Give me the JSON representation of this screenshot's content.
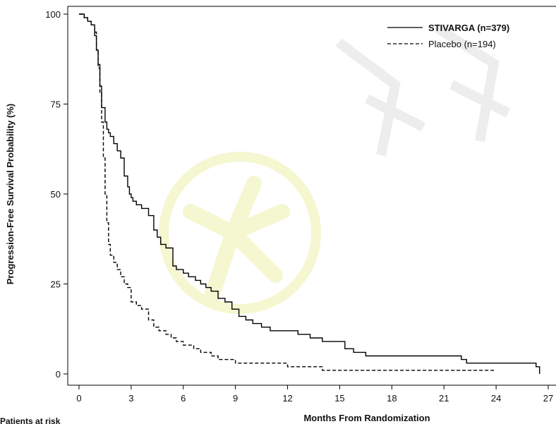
{
  "chart_data": {
    "type": "line",
    "subtype": "kaplan-meier",
    "title": "",
    "xlabel": "Months From Randomization",
    "ylabel": "Progression-Free Survival Probability (%)",
    "xlim": [
      0,
      27
    ],
    "ylim": [
      0,
      100
    ],
    "x_ticks": [
      0,
      3,
      6,
      9,
      12,
      15,
      18,
      21,
      24,
      27
    ],
    "y_ticks": [
      0,
      25,
      50,
      75,
      100
    ],
    "grid": false,
    "legend_position": "top-right",
    "series": [
      {
        "name": "STIVARGA (n=379)",
        "line_style": "solid",
        "color": "#000000",
        "x": [
          0,
          0.3,
          0.5,
          0.7,
          0.9,
          1.0,
          1.1,
          1.2,
          1.3,
          1.5,
          1.6,
          1.7,
          1.8,
          2.0,
          2.2,
          2.4,
          2.6,
          2.8,
          2.9,
          3.0,
          3.1,
          3.3,
          3.6,
          4.0,
          4.3,
          4.5,
          4.7,
          5.0,
          5.4,
          5.6,
          6.0,
          6.3,
          6.7,
          7.0,
          7.3,
          7.6,
          8.0,
          8.4,
          8.8,
          9.2,
          9.6,
          10.0,
          10.5,
          11.0,
          12.0,
          12.6,
          13.3,
          14.0,
          15.3,
          15.8,
          16.5,
          18.0,
          20.0,
          22.0,
          22.3,
          23.0,
          25.0,
          26.3,
          26.5
        ],
        "y": [
          100,
          99,
          98,
          97,
          94,
          90,
          86,
          80,
          74,
          70,
          68,
          67,
          66,
          64,
          62,
          60,
          55,
          52,
          50,
          49,
          48,
          47,
          46,
          44,
          40,
          38,
          36,
          35,
          30,
          29,
          28,
          27,
          26,
          25,
          24,
          23,
          21,
          20,
          18,
          16,
          15,
          14,
          13,
          12,
          12,
          11,
          10,
          9,
          7,
          6,
          5,
          5,
          5,
          4,
          3,
          3,
          3,
          2,
          0
        ]
      },
      {
        "name": "Placebo (n=194)",
        "line_style": "dashed",
        "color": "#000000",
        "x": [
          0,
          0.3,
          0.5,
          0.7,
          0.9,
          1.0,
          1.1,
          1.2,
          1.3,
          1.4,
          1.5,
          1.6,
          1.7,
          1.8,
          2.0,
          2.2,
          2.4,
          2.6,
          2.8,
          3.0,
          3.3,
          3.6,
          4.0,
          4.3,
          4.6,
          5.0,
          5.3,
          5.6,
          6.0,
          6.6,
          7.0,
          7.6,
          8.0,
          8.5,
          9.0,
          10.0,
          11.0,
          12.0,
          14.0,
          15.0,
          18.0,
          20.0,
          21.0,
          24.0
        ],
        "y": [
          100,
          99,
          98,
          97,
          95,
          90,
          85,
          78,
          70,
          60,
          50,
          42,
          36,
          33,
          31,
          29,
          27,
          25,
          24,
          20,
          19,
          18,
          15,
          13,
          12,
          11,
          10,
          9,
          8,
          7,
          6,
          5,
          4,
          4,
          3,
          3,
          3,
          2,
          1,
          1,
          1,
          1,
          1,
          1
        ]
      }
    ]
  },
  "footer": {
    "partial_text": "Patients at risk"
  }
}
